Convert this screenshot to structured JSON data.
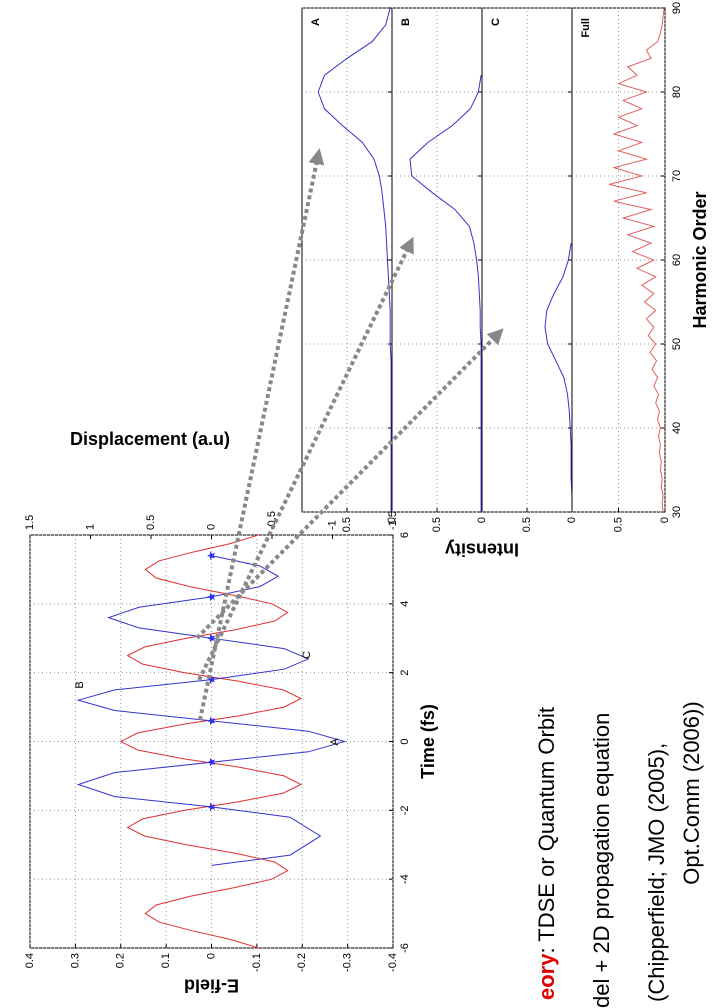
{
  "chart_data": [
    {
      "type": "line",
      "xlabel": "Time (fs)",
      "ylabel": "E-field",
      "y2label": "Displacement (a.u)",
      "xlim": [
        -6,
        6
      ],
      "xticks": [
        -6,
        -4,
        -2,
        0,
        2,
        4,
        6
      ],
      "ylim": [
        -0.4,
        0.4
      ],
      "yticks": [
        -0.4,
        -0.3,
        -0.2,
        -0.1,
        0,
        0.1,
        0.2,
        0.3,
        0.4
      ],
      "y2lim": [
        -1.5,
        1.5
      ],
      "y2ticks": [
        -1.5,
        -1,
        -0.5,
        0,
        0.5,
        1,
        1.5
      ],
      "grid": true,
      "annotations": [
        "A",
        "B",
        "C"
      ],
      "series": [
        {
          "color": "#e03030",
          "x": [
            -6,
            -5.75,
            -5.5,
            -5.25,
            -5,
            -4.75,
            -4.5,
            -4.25,
            -4,
            -3.75,
            -3.5,
            -3.25,
            -3,
            -2.75,
            -2.5,
            -2.25,
            -2,
            -1.75,
            -1.5,
            -1.25,
            -1,
            -0.75,
            -0.5,
            -0.25,
            0,
            0.25,
            0.5,
            0.75,
            1,
            1.25,
            1.5,
            1.75,
            2,
            2.25,
            2.5,
            2.75,
            3,
            3.25,
            3.5,
            3.75,
            4,
            4.25,
            4.5,
            4.75,
            5,
            5.25,
            5.5,
            5.75,
            6
          ],
          "values": [
            -0.104,
            -0.041,
            0.042,
            0.115,
            0.146,
            0.122,
            0.048,
            -0.049,
            -0.133,
            -0.168,
            -0.139,
            -0.054,
            0.055,
            0.147,
            0.185,
            0.152,
            0.059,
            -0.06,
            -0.158,
            -0.197,
            -0.16,
            -0.062,
            0.062,
            0.162,
            0.2,
            0.162,
            0.062,
            -0.062,
            -0.16,
            -0.197,
            -0.158,
            -0.06,
            0.059,
            0.152,
            0.185,
            0.147,
            0.055,
            -0.054,
            -0.139,
            -0.168,
            -0.133,
            -0.049,
            0.048,
            0.122,
            0.146,
            0.115,
            0.042,
            -0.041,
            -0.104
          ]
        },
        {
          "color": "#3333cc",
          "axis": "y2",
          "x": [
            -3.6,
            -3.3,
            -2.75,
            -2.2,
            -1.9,
            -1.6,
            -1.25,
            -0.9,
            -0.6,
            -0.3,
            0,
            0.3,
            0.6,
            0.9,
            1.2,
            1.5,
            1.8,
            2.1,
            2.4,
            2.7,
            3.0,
            3.3,
            3.6,
            3.9,
            4.2,
            4.5,
            4.8,
            5.1,
            5.4
          ],
          "values": [
            0,
            -0.65,
            -0.9,
            -0.65,
            0,
            0.8,
            1.1,
            0.8,
            0,
            -0.8,
            -1.1,
            -0.8,
            0,
            0.8,
            1.1,
            0.8,
            0,
            -0.6,
            -0.8,
            -0.6,
            0,
            0.6,
            0.85,
            0.6,
            0,
            -0.4,
            -0.55,
            -0.4,
            0
          ]
        },
        {
          "color": "#3333ee",
          "axis": "y2",
          "marker": "star",
          "x": [
            -1.9,
            -0.6,
            0.6,
            1.8,
            3.0,
            4.2,
            5.4
          ],
          "values": [
            0,
            0,
            0,
            0,
            0,
            0,
            0
          ]
        }
      ]
    },
    {
      "type": "line",
      "label": "A",
      "xlim": [
        30,
        90
      ],
      "ylim": [
        0,
        1
      ],
      "yticks": [
        0,
        0.5
      ],
      "grid": true,
      "series": [
        {
          "color": "#3333cc",
          "x": [
            30,
            32,
            34,
            36,
            38,
            40,
            42,
            44,
            46,
            48,
            50,
            52,
            54,
            56,
            58,
            60,
            62,
            64,
            66,
            68,
            70,
            72,
            74,
            76,
            78,
            80,
            82,
            84,
            86,
            88,
            90
          ],
          "values": [
            0.01,
            0.01,
            0.01,
            0.01,
            0.01,
            0.01,
            0.01,
            0.01,
            0.01,
            0.01,
            0.02,
            0.02,
            0.02,
            0.03,
            0.04,
            0.05,
            0.06,
            0.07,
            0.09,
            0.11,
            0.14,
            0.2,
            0.33,
            0.55,
            0.75,
            0.82,
            0.75,
            0.5,
            0.22,
            0.07,
            0.02
          ]
        }
      ]
    },
    {
      "type": "line",
      "label": "B",
      "ylabel": "Intensity",
      "xlim": [
        30,
        90
      ],
      "ylim": [
        0,
        1
      ],
      "yticks": [
        0,
        0.5
      ],
      "grid": true,
      "series": [
        {
          "color": "#3333cc",
          "x": [
            30,
            32,
            34,
            36,
            38,
            40,
            42,
            44,
            46,
            48,
            50,
            52,
            54,
            56,
            58,
            60,
            62,
            64,
            66,
            68,
            70,
            72,
            74,
            76,
            78,
            80,
            82,
            84,
            86,
            88,
            90
          ],
          "values": [
            0.01,
            0.01,
            0.01,
            0.01,
            0.01,
            0.01,
            0.01,
            0.01,
            0.01,
            0.01,
            0.01,
            0.02,
            0.02,
            0.03,
            0.04,
            0.06,
            0.09,
            0.14,
            0.3,
            0.55,
            0.78,
            0.8,
            0.6,
            0.33,
            0.13,
            0.04,
            0.01,
            null,
            null,
            null,
            null
          ]
        }
      ]
    },
    {
      "type": "line",
      "label": "C",
      "xlim": [
        30,
        90
      ],
      "ylim": [
        0,
        1
      ],
      "yticks": [
        0,
        0.5
      ],
      "grid": true,
      "series": [
        {
          "color": "#3333cc",
          "x": [
            30,
            32,
            34,
            36,
            38,
            40,
            42,
            44,
            46,
            48,
            50,
            52,
            54,
            56,
            58,
            60,
            62,
            64,
            66,
            68,
            70,
            72,
            74,
            76,
            78,
            80,
            82,
            84,
            86,
            88,
            90
          ],
          "values": [
            0,
            0,
            0.01,
            0.01,
            0.01,
            0.02,
            0.03,
            0.05,
            0.09,
            0.18,
            0.27,
            0.3,
            0.28,
            0.2,
            0.1,
            0.04,
            0.01,
            null,
            null,
            null,
            null,
            null,
            null,
            null,
            null,
            null,
            null,
            null,
            null,
            null,
            null
          ]
        }
      ]
    },
    {
      "type": "line",
      "label": "Full",
      "xlabel": "Harmonic Order",
      "xlim": [
        30,
        90
      ],
      "xticks": [
        30,
        40,
        50,
        60,
        70,
        80,
        90
      ],
      "ylim": [
        0,
        1
      ],
      "yticks": [
        0,
        0.5
      ],
      "grid": true,
      "series": [
        {
          "color": "#e06060",
          "x": [
            30,
            31,
            32,
            33,
            34,
            35,
            36,
            37,
            38,
            39,
            40,
            41,
            42,
            43,
            44,
            45,
            46,
            47,
            48,
            49,
            50,
            51,
            52,
            53,
            54,
            55,
            56,
            57,
            58,
            59,
            60,
            61,
            62,
            63,
            64,
            65,
            66,
            67,
            68,
            69,
            70,
            71,
            72,
            73,
            74,
            75,
            76,
            77,
            78,
            79,
            80,
            81,
            82,
            83,
            84,
            85,
            86,
            87,
            88,
            89,
            90
          ],
          "values": [
            0.02,
            0.03,
            0.02,
            0.04,
            0.03,
            0.05,
            0.04,
            0.06,
            0.05,
            0.07,
            0.05,
            0.08,
            0.06,
            0.1,
            0.07,
            0.12,
            0.08,
            0.14,
            0.09,
            0.16,
            0.1,
            0.18,
            0.12,
            0.2,
            0.1,
            0.22,
            0.12,
            0.25,
            0.1,
            0.3,
            0.12,
            0.35,
            0.15,
            0.4,
            0.12,
            0.45,
            0.15,
            0.55,
            0.2,
            0.6,
            0.25,
            0.55,
            0.2,
            0.5,
            0.25,
            0.55,
            0.3,
            0.5,
            0.25,
            0.45,
            0.2,
            0.5,
            0.3,
            0.4,
            0.15,
            0.2,
            0.08,
            0.05,
            0.03,
            0.02,
            0.01
          ]
        }
      ]
    }
  ],
  "caption": [
    "eory",
    ": TDSE or Quantum Orbit",
    "del + 2D propagation equation",
    "(Chipperfield; JMO (2005),",
    "Opt.Comm (2006))"
  ]
}
